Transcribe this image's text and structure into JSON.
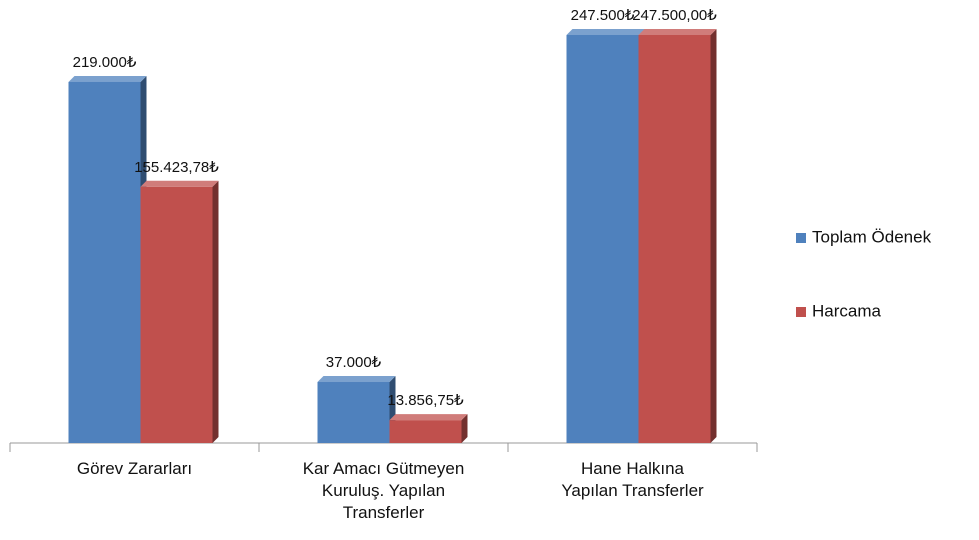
{
  "chart_data": {
    "type": "bar3d",
    "categories": [
      "Görev Zararları",
      "Kar Amacı Gütmeyen\nKuruluş. Yapılan\nTransferler",
      "Hane Halkına\nYapılan Transferler"
    ],
    "series": [
      {
        "name": "Toplam Ödenek",
        "color": "#4f81bd",
        "values": [
          219000,
          37000,
          247500
        ],
        "value_labels": [
          "219.000₺",
          "37.000₺",
          "247.500₺"
        ]
      },
      {
        "name": "Harcama",
        "color": "#c0504d",
        "values": [
          155423.78,
          13856.75,
          247500
        ],
        "value_labels": [
          "155.423,78₺",
          "13.856,75₺",
          "247.500,00₺"
        ]
      }
    ],
    "legend": "right"
  }
}
